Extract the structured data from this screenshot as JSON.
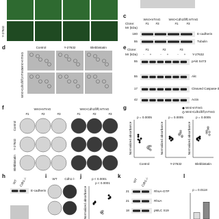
{
  "top": {
    "row_label": "Y-27632"
  },
  "c": {
    "letter": "c",
    "groups": [
      "Wnt>mTmG",
      "Wnt>Cdh1fl/fl;mTmG"
    ],
    "clone_label": "Clone:",
    "clones": [
      "#1",
      "#3",
      "#1",
      "#3"
    ],
    "mr_label": "Mr (kDa)",
    "bands": [
      {
        "mw": "180",
        "name": "E-cadherin"
      },
      {
        "mw": "55",
        "name": "Tubulin"
      }
    ]
  },
  "d": {
    "letter": "d",
    "columns": [
      "Control",
      "Y-27632",
      "Blebbistatin"
    ],
    "rows": [
      "Wnt>mTmG",
      "Wnt>Cdh1fl/fl;mTmG"
    ]
  },
  "e": {
    "letter": "e",
    "clone_label": "Clone:",
    "clones": [
      "#1",
      "#2",
      "#3"
    ],
    "mr_label": "Mr (kDa)",
    "treatment": "Y-27632",
    "signs": [
      "-",
      "+",
      "-",
      "+",
      "-",
      "+"
    ],
    "bands": [
      {
        "mw": "55",
        "name": "pAkt S473"
      },
      {
        "mw": "55",
        "name": "Akt"
      },
      {
        "mw": "17",
        "name": "Cleaved Caspase-3"
      },
      {
        "mw": "42",
        "name": "Actin"
      }
    ]
  },
  "f": {
    "letter": "f",
    "groups": [
      "Wnt>mTmG",
      "Wnt>Cdh1fl/fl;mTmG"
    ],
    "clones": [
      "#1",
      "#2",
      "#3",
      "#1",
      "#2",
      "#3"
    ],
    "rows": [
      "Control",
      "Y-27632",
      "Blebbistatin"
    ]
  },
  "g": {
    "letter": "g",
    "legend": [
      "Wnt>mTmG",
      "Wnt>Cdh1fl/fl;mTmG"
    ],
    "y_label": "Normalized absorbance",
    "ylim": [
      0,
      2
    ],
    "plots": [
      {
        "label": "Control",
        "p": "p = 0.0005",
        "a": [
          1.1,
          0.9,
          1.0,
          1.2,
          0.8,
          1.0,
          0.95
        ],
        "b": [
          0.5,
          0.6,
          0.4,
          0.55,
          0.45,
          0.6
        ]
      },
      {
        "label": "Y-27632",
        "p": "p = 0.0005",
        "a": [
          1.0,
          1.05,
          0.95,
          1.1,
          0.9,
          1.0
        ],
        "b": [
          1.2,
          1.3,
          1.1,
          1.25,
          1.4,
          1.15
        ]
      },
      {
        "label": "Blebbistatin",
        "p": "p = 0.0005",
        "a": [
          1.0,
          0.9,
          1.1,
          0.95,
          1.05,
          1.0
        ],
        "b": [
          1.3,
          1.5,
          1.2,
          1.4,
          1.6,
          1.35
        ]
      }
    ]
  },
  "h": {
    "letter": "h",
    "lanes": [
      "WT",
      "Cdh1-/-"
    ],
    "band": "E-cadherin"
  },
  "i": {
    "letter": "i",
    "lanes": [
      "WT",
      "Cdh1-/-"
    ]
  },
  "j": {
    "letter": "j",
    "p": [
      "p < 0.0001",
      "p < 0.0001"
    ],
    "y_label": "Normalized absorbance",
    "ylim": [
      0,
      2
    ],
    "groups": [
      [
        1.0,
        1.05,
        0.95,
        1.1
      ],
      [
        0.4,
        0.5,
        0.45,
        0.35
      ],
      [
        1.3,
        1.4,
        1.5,
        1.35
      ]
    ]
  },
  "k": {
    "letter": "k",
    "lanes": [
      "WT",
      "Cdh1-/-"
    ],
    "bands": [
      {
        "mw": "21",
        "name": "RhoA-GTP"
      },
      {
        "mw": "21",
        "name": "RhoA"
      },
      {
        "mw": "18",
        "name": "pMLC S19"
      }
    ]
  },
  "l": {
    "letter": "l",
    "p": "p = 0.0118",
    "ylim": [
      0,
      4
    ],
    "values": [
      1.0,
      2.6
    ]
  }
}
